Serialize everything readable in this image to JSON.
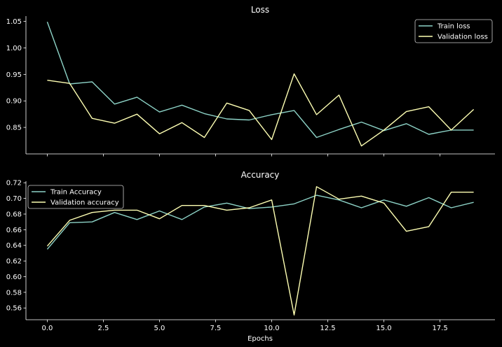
{
  "chart_data": [
    {
      "type": "line",
      "title": "Loss",
      "xlabel": "",
      "ylabel": "",
      "x": [
        0,
        1,
        2,
        3,
        4,
        5,
        6,
        7,
        8,
        9,
        10,
        11,
        12,
        13,
        14,
        15,
        16,
        17,
        18,
        19
      ],
      "xlim": [
        -0.95,
        19.95
      ],
      "ylim": [
        0.8,
        1.06
      ],
      "xticks": [
        0.0,
        2.5,
        5.0,
        7.5,
        10.0,
        12.5,
        15.0,
        17.5
      ],
      "xtick_labels": [
        "",
        "",
        "",
        "",
        "",
        "",
        "",
        ""
      ],
      "yticks": [
        0.85,
        0.9,
        0.95,
        1.0,
        1.05
      ],
      "ytick_labels": [
        "0.85",
        "0.90",
        "0.95",
        "1.00",
        "1.05"
      ],
      "grid": false,
      "legend_position": "top-right",
      "series": [
        {
          "name": "Train loss",
          "color": "#8dd3c7",
          "values": [
            1.049,
            0.932,
            0.936,
            0.894,
            0.907,
            0.879,
            0.892,
            0.876,
            0.866,
            0.864,
            0.874,
            0.882,
            0.831,
            0.846,
            0.86,
            0.844,
            0.857,
            0.837,
            0.845,
            0.845
          ]
        },
        {
          "name": "Validation loss",
          "color": "#feffb3",
          "values": [
            0.939,
            0.933,
            0.867,
            0.858,
            0.875,
            0.838,
            0.859,
            0.831,
            0.896,
            0.882,
            0.827,
            0.951,
            0.874,
            0.911,
            0.815,
            0.845,
            0.88,
            0.889,
            0.845,
            0.884
          ]
        }
      ]
    },
    {
      "type": "line",
      "title": "Accuracy",
      "xlabel": "Epochs",
      "ylabel": "",
      "x": [
        0,
        1,
        2,
        3,
        4,
        5,
        6,
        7,
        8,
        9,
        10,
        11,
        12,
        13,
        14,
        15,
        16,
        17,
        18,
        19
      ],
      "xlim": [
        -0.95,
        19.95
      ],
      "ylim": [
        0.545,
        0.722
      ],
      "xticks": [
        0.0,
        2.5,
        5.0,
        7.5,
        10.0,
        12.5,
        15.0,
        17.5
      ],
      "xtick_labels": [
        "0.0",
        "2.5",
        "5.0",
        "7.5",
        "10.0",
        "12.5",
        "15.0",
        "17.5"
      ],
      "yticks": [
        0.56,
        0.58,
        0.6,
        0.62,
        0.64,
        0.66,
        0.68,
        0.7,
        0.72
      ],
      "ytick_labels": [
        "0.56",
        "0.58",
        "0.60",
        "0.62",
        "0.64",
        "0.66",
        "0.68",
        "0.70",
        "0.72"
      ],
      "grid": false,
      "legend_position": "top-left",
      "series": [
        {
          "name": "Train Accuracy",
          "color": "#8dd3c7",
          "values": [
            0.635,
            0.669,
            0.67,
            0.682,
            0.673,
            0.684,
            0.673,
            0.689,
            0.694,
            0.687,
            0.689,
            0.693,
            0.704,
            0.698,
            0.688,
            0.698,
            0.69,
            0.701,
            0.688,
            0.695
          ]
        },
        {
          "name": "Validation accuracy",
          "color": "#feffb3",
          "values": [
            0.639,
            0.672,
            0.682,
            0.685,
            0.685,
            0.674,
            0.691,
            0.691,
            0.685,
            0.688,
            0.698,
            0.551,
            0.715,
            0.699,
            0.703,
            0.694,
            0.658,
            0.664,
            0.708,
            0.708
          ]
        }
      ]
    }
  ]
}
